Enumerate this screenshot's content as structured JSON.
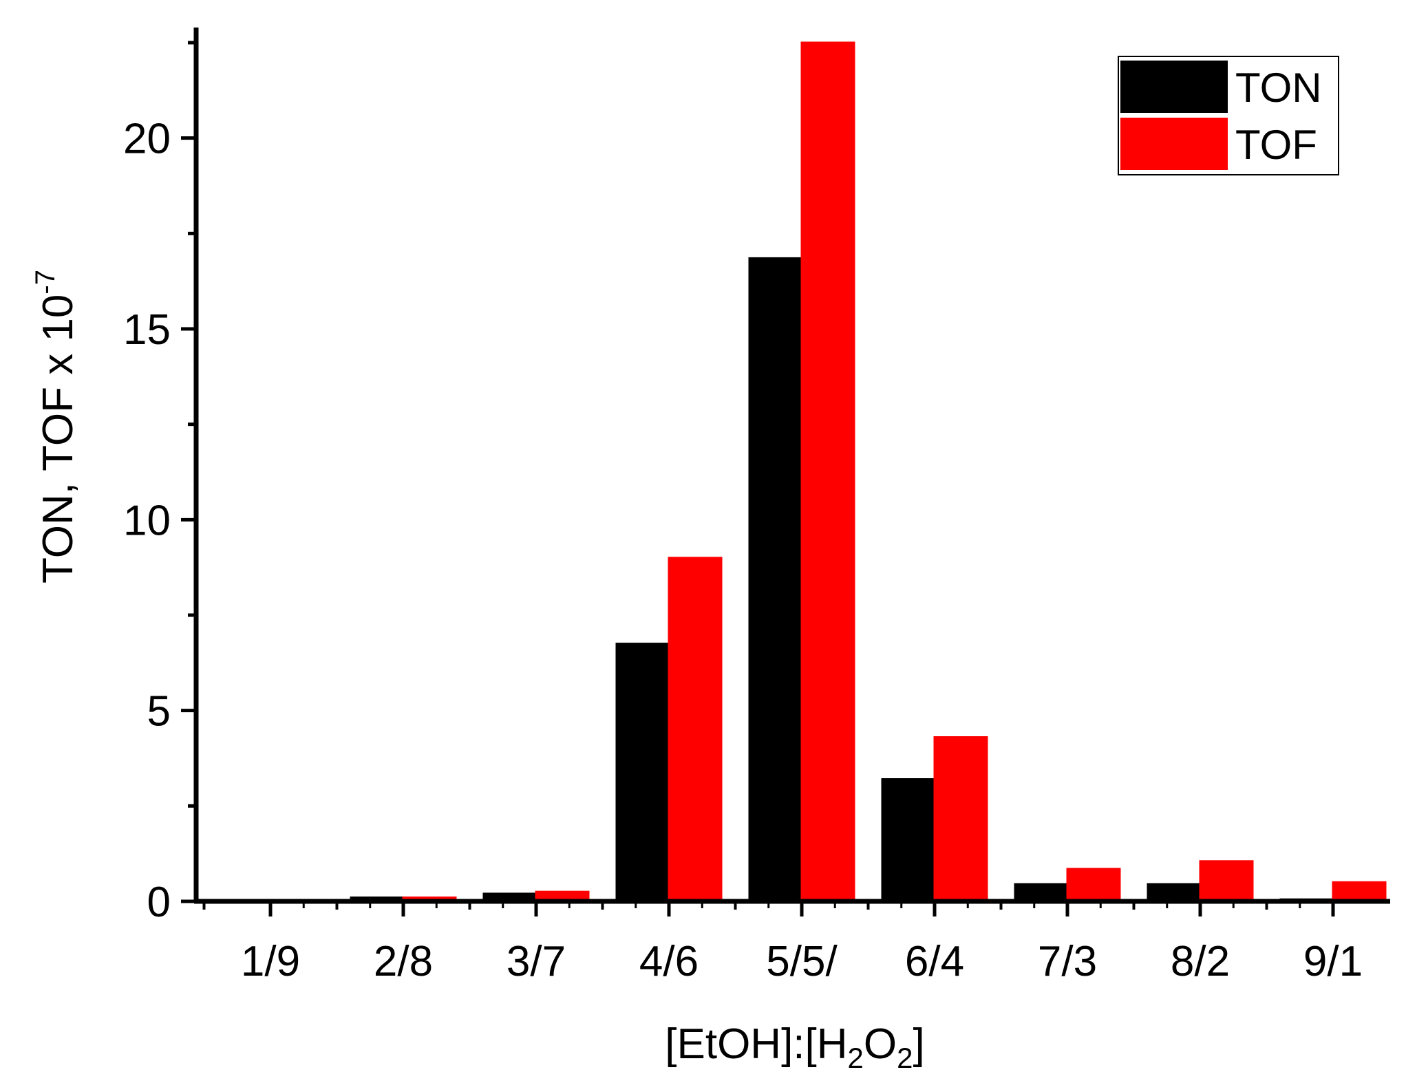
{
  "chart_data": {
    "type": "bar",
    "categories": [
      "1/9",
      "2/8",
      "3/7",
      "4/6",
      "5/5/",
      "6/4",
      "7/3",
      "8/2",
      "9/1"
    ],
    "series": [
      {
        "name": "TON",
        "color": "#000000",
        "values": [
          0.0,
          0.1,
          0.2,
          6.75,
          16.85,
          3.2,
          0.45,
          0.45,
          0.05
        ]
      },
      {
        "name": "TOF",
        "color": "#ff0000",
        "values": [
          0.0,
          0.1,
          0.25,
          9.0,
          22.5,
          4.3,
          0.85,
          1.05,
          0.5
        ]
      }
    ],
    "ylim": [
      0,
      23
    ],
    "yticks": [
      0,
      5,
      10,
      15,
      20
    ],
    "xlabel": {
      "prefix": "[EtOH]:[H",
      "sub1": "2",
      "mid": "O",
      "sub2": "2",
      "suffix": "]"
    },
    "ylabel": {
      "main": "TON, TOF x 10",
      "sup": "-7"
    },
    "legend_position": "top-right",
    "grid": false
  }
}
